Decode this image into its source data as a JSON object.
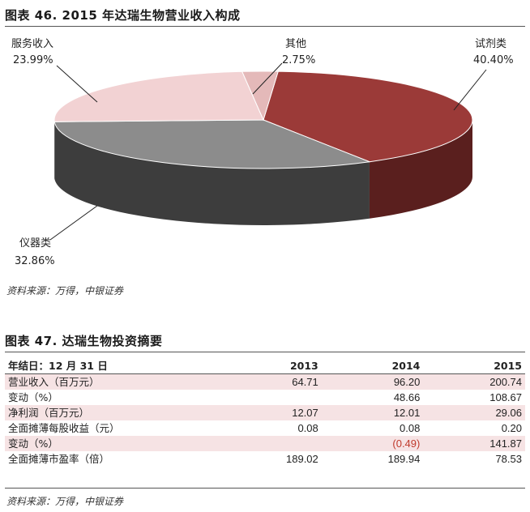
{
  "figure46": {
    "title": "图表 46. 2015 年达瑞生物营业收入构成",
    "source": "资料来源：万得，中银证券"
  },
  "chart_data": {
    "type": "pie",
    "title": "图表 46. 2015 年达瑞生物营业收入构成",
    "slices": [
      {
        "label": "试剂类",
        "value": 40.4,
        "value_label": "40.40%",
        "color": "#9b3a38"
      },
      {
        "label": "仪器类",
        "value": 32.86,
        "value_label": "32.86%",
        "color": "#8c8c8c"
      },
      {
        "label": "服务收入",
        "value": 23.99,
        "value_label": "23.99%",
        "color": "#f2d2d3"
      },
      {
        "label": "其他",
        "value": 2.75,
        "value_label": "2.75%",
        "color": "#e4b9b9"
      }
    ]
  },
  "figure47": {
    "title": "图表 47. 达瑞生物投资摘要",
    "source": "资料来源：万得，中银证券",
    "columns": [
      "年结日：12 月 31 日",
      "2013",
      "2014",
      "2015"
    ],
    "rows": [
      {
        "label": "营业收入（百万元）",
        "cells": [
          "64.71",
          "96.20",
          "200.74"
        ],
        "shade": true
      },
      {
        "label": "变动（%）",
        "cells": [
          "",
          "48.66",
          "108.67"
        ],
        "shade": false
      },
      {
        "label": "净利润（百万元）",
        "cells": [
          "12.07",
          "12.01",
          "29.06"
        ],
        "shade": true
      },
      {
        "label": "全面摊薄每股收益（元）",
        "cells": [
          "0.08",
          "0.08",
          "0.20"
        ],
        "shade": false
      },
      {
        "label": "变动（%）",
        "cells": [
          "",
          "(0.49)",
          "141.87"
        ],
        "shade": true,
        "neg_index": 1
      },
      {
        "label": "全面摊薄市盈率（倍）",
        "cells": [
          "189.02",
          "189.94",
          "78.53"
        ],
        "shade": false
      }
    ]
  }
}
